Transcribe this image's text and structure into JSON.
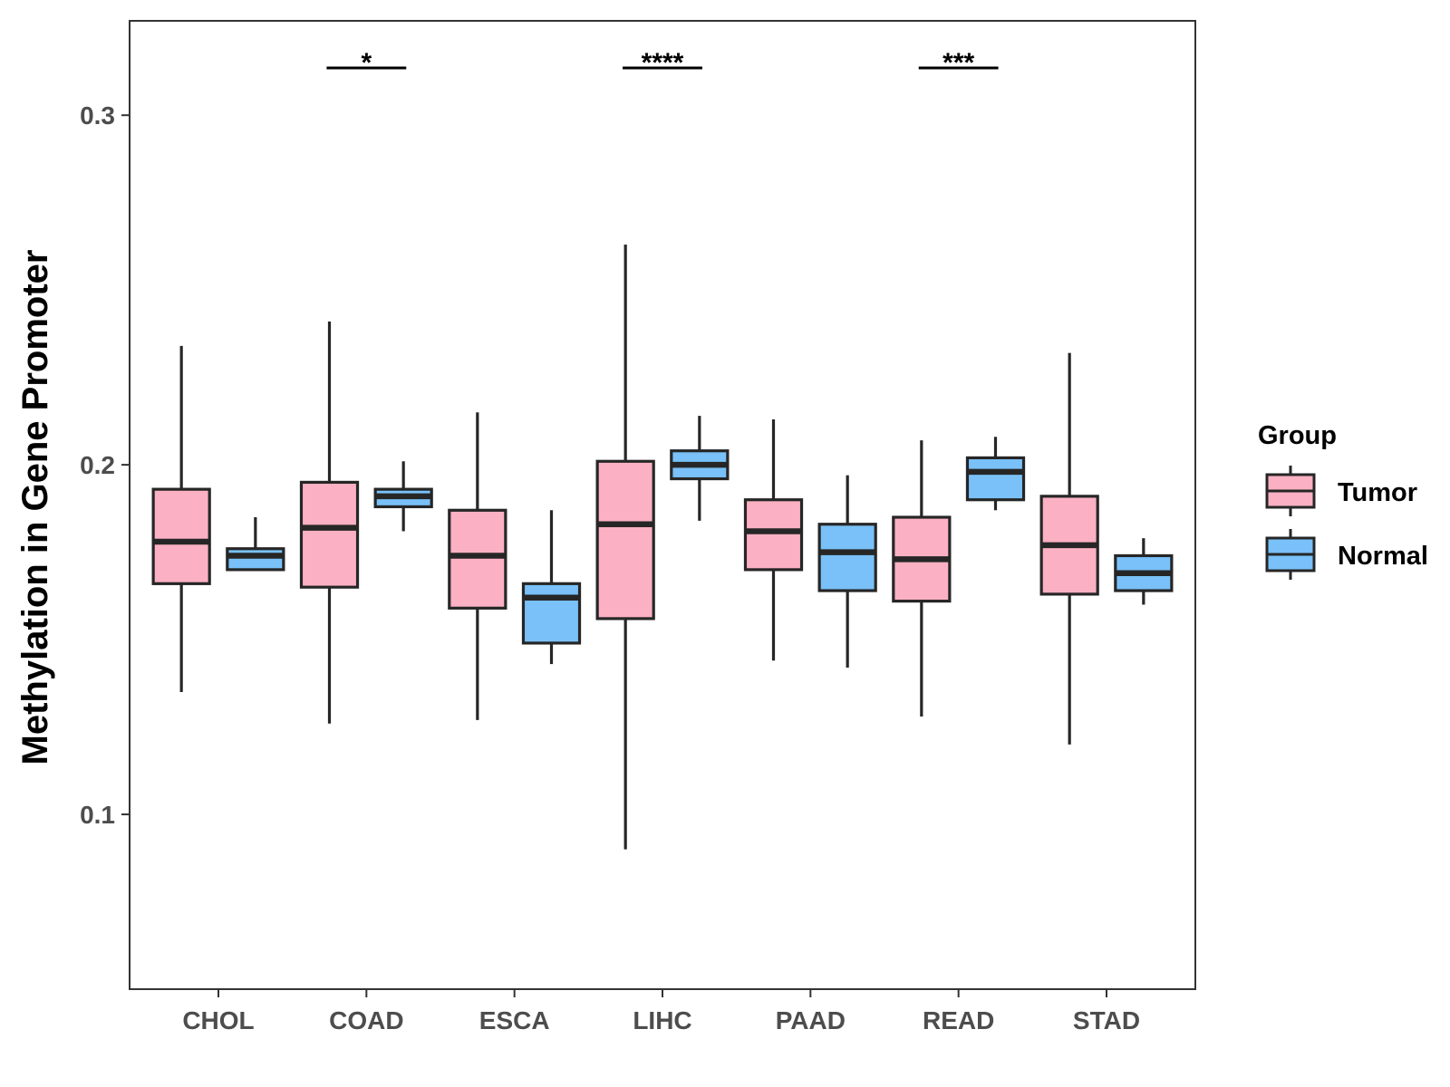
{
  "chart_data": {
    "type": "boxplot",
    "title": "",
    "xlabel": "",
    "ylabel": "Methylation in Gene Promoter",
    "ylim": [
      0.05,
      0.327
    ],
    "yticks": [
      0.1,
      0.2,
      0.3
    ],
    "ytick_labels": [
      "0.1",
      "0.2",
      "0.3"
    ],
    "categories": [
      "CHOL",
      "COAD",
      "ESCA",
      "LIHC",
      "PAAD",
      "READ",
      "STAD"
    ],
    "legend": {
      "title": "Group",
      "position": "right",
      "items": [
        {
          "label": "Tumor",
          "color": "#fbb1c3"
        },
        {
          "label": "Normal",
          "color": "#79c1f8"
        }
      ]
    },
    "series": [
      {
        "name": "Tumor",
        "color": "#fbb1c3",
        "boxes": [
          {
            "min": 0.135,
            "q1": 0.166,
            "median": 0.178,
            "q3": 0.193,
            "max": 0.234
          },
          {
            "min": 0.126,
            "q1": 0.165,
            "median": 0.182,
            "q3": 0.195,
            "max": 0.241
          },
          {
            "min": 0.127,
            "q1": 0.159,
            "median": 0.174,
            "q3": 0.187,
            "max": 0.215
          },
          {
            "min": 0.09,
            "q1": 0.156,
            "median": 0.183,
            "q3": 0.201,
            "max": 0.263
          },
          {
            "min": 0.144,
            "q1": 0.17,
            "median": 0.181,
            "q3": 0.19,
            "max": 0.213
          },
          {
            "min": 0.128,
            "q1": 0.161,
            "median": 0.173,
            "q3": 0.185,
            "max": 0.207
          },
          {
            "min": 0.12,
            "q1": 0.163,
            "median": 0.177,
            "q3": 0.191,
            "max": 0.232
          }
        ]
      },
      {
        "name": "Normal",
        "color": "#79c1f8",
        "boxes": [
          {
            "min": 0.17,
            "q1": 0.17,
            "median": 0.174,
            "q3": 0.176,
            "max": 0.185
          },
          {
            "min": 0.181,
            "q1": 0.188,
            "median": 0.191,
            "q3": 0.193,
            "max": 0.201
          },
          {
            "min": 0.143,
            "q1": 0.149,
            "median": 0.162,
            "q3": 0.166,
            "max": 0.187
          },
          {
            "min": 0.184,
            "q1": 0.196,
            "median": 0.2,
            "q3": 0.204,
            "max": 0.214
          },
          {
            "min": 0.142,
            "q1": 0.164,
            "median": 0.175,
            "q3": 0.183,
            "max": 0.197
          },
          {
            "min": 0.187,
            "q1": 0.19,
            "median": 0.198,
            "q3": 0.202,
            "max": 0.208
          },
          {
            "min": 0.16,
            "q1": 0.164,
            "median": 0.169,
            "q3": 0.174,
            "max": 0.179
          }
        ]
      }
    ],
    "annotations": [
      {
        "category": "COAD",
        "label": "*"
      },
      {
        "category": "LIHC",
        "label": "****"
      },
      {
        "category": "READ",
        "label": "***"
      }
    ],
    "grid": false
  }
}
